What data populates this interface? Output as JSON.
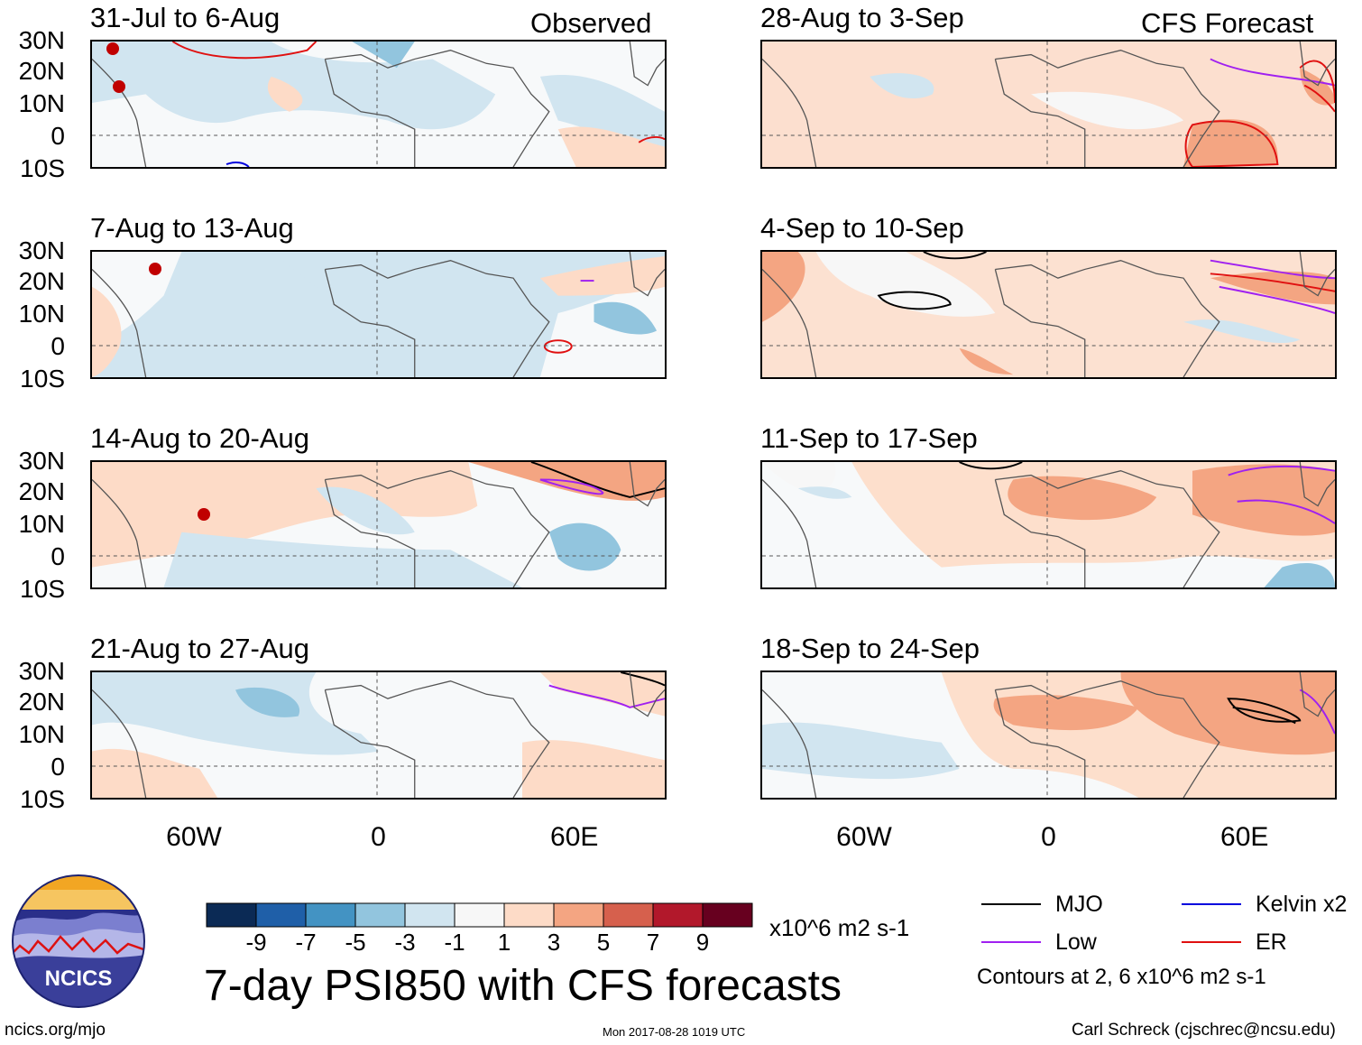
{
  "observed_label": "Observed",
  "forecast_label": "CFS Forecast",
  "panels_left": [
    {
      "title": "31-Jul to 6-Aug"
    },
    {
      "title": "7-Aug to 13-Aug"
    },
    {
      "title": "14-Aug to 20-Aug"
    },
    {
      "title": "21-Aug to 27-Aug"
    }
  ],
  "panels_right": [
    {
      "title": "28-Aug to 3-Sep"
    },
    {
      "title": "4-Sep to 10-Sep"
    },
    {
      "title": "11-Sep to 17-Sep"
    },
    {
      "title": "18-Sep to 24-Sep"
    }
  ],
  "lat_labels": [
    "30N",
    "20N",
    "10N",
    "0",
    "10S"
  ],
  "lon_labels": [
    "60W",
    "0",
    "60E"
  ],
  "colorbar": {
    "colors": [
      "#0b2a55",
      "#1f5fa8",
      "#4393c3",
      "#92c5de",
      "#d1e5f0",
      "#f7f7f7",
      "#fddbc7",
      "#f4a582",
      "#d6604d",
      "#b2182b",
      "#67001f"
    ],
    "tick_labels": [
      "-9",
      "-7",
      "-5",
      "-3",
      "-1",
      "1",
      "3",
      "5",
      "7",
      "9"
    ],
    "units": "x10^6 m2 s-1"
  },
  "main_title": "7-day PSI850 with CFS forecasts",
  "legend": {
    "items": [
      {
        "label": "MJO",
        "color": "#000000"
      },
      {
        "label": "Kelvin x2",
        "color": "#0000dd"
      },
      {
        "label": "Low",
        "color": "#a020f0"
      },
      {
        "label": "ER",
        "color": "#e01010"
      }
    ],
    "contours_note": "Contours at 2, 6 x10^6 m2 s-1"
  },
  "logo_text": "NCICS",
  "footer": {
    "url": "ncics.org/mjo",
    "timestamp": "Mon 2017-08-28 1019 UTC",
    "credit": "Carl Schreck (cjschrec@ncsu.edu)"
  }
}
